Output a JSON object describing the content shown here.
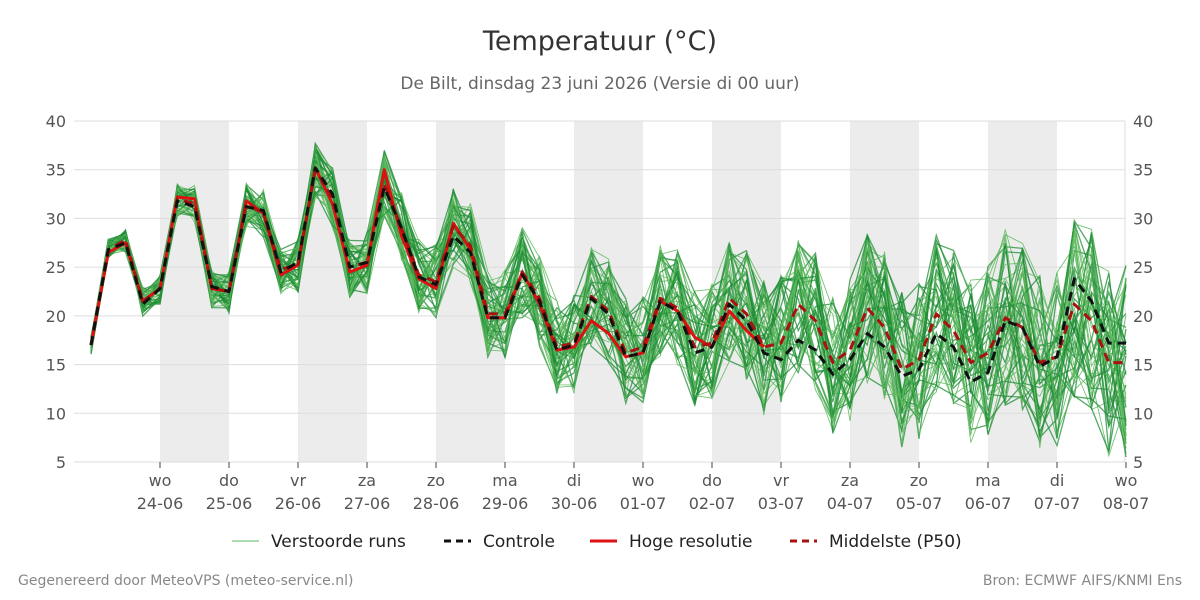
{
  "chart_data": {
    "type": "line",
    "title": "Temperatuur (°C)",
    "subtitle": "De Bilt, dinsdag 23 juni 2026 (Versie di 00 uur)",
    "ylim": [
      5,
      40
    ],
    "yticks": [
      5,
      10,
      15,
      20,
      25,
      30,
      35,
      40
    ],
    "grid": true,
    "legend_position": "bottom",
    "shaded_days": [
      "24-06",
      "26-06",
      "28-06",
      "30-06",
      "02-07",
      "04-07",
      "06-07"
    ],
    "x_ticks": [
      {
        "day": "wo",
        "date": "24-06"
      },
      {
        "day": "do",
        "date": "25-06"
      },
      {
        "day": "vr",
        "date": "26-06"
      },
      {
        "day": "za",
        "date": "27-06"
      },
      {
        "day": "zo",
        "date": "28-06"
      },
      {
        "day": "ma",
        "date": "29-06"
      },
      {
        "day": "di",
        "date": "30-06"
      },
      {
        "day": "wo",
        "date": "01-07"
      },
      {
        "day": "do",
        "date": "02-07"
      },
      {
        "day": "vr",
        "date": "03-07"
      },
      {
        "day": "za",
        "date": "04-07"
      },
      {
        "day": "zo",
        "date": "05-07"
      },
      {
        "day": "ma",
        "date": "06-07"
      },
      {
        "day": "di",
        "date": "07-07"
      },
      {
        "day": "wo",
        "date": "08-07"
      }
    ],
    "x_times": [
      "23-06 00:00",
      "23-06 06:00",
      "23-06 12:00",
      "23-06 18:00",
      "24-06 00:00",
      "24-06 06:00",
      "24-06 12:00",
      "24-06 18:00",
      "25-06 00:00",
      "25-06 06:00",
      "25-06 12:00",
      "25-06 18:00",
      "26-06 00:00",
      "26-06 06:00",
      "26-06 12:00",
      "26-06 18:00",
      "27-06 00:00",
      "27-06 06:00",
      "27-06 12:00",
      "27-06 18:00",
      "28-06 00:00",
      "28-06 06:00",
      "28-06 12:00",
      "28-06 18:00",
      "29-06 00:00",
      "29-06 06:00",
      "29-06 12:00",
      "29-06 18:00",
      "30-06 00:00",
      "30-06 06:00",
      "30-06 12:00",
      "30-06 18:00",
      "01-07 00:00",
      "01-07 06:00",
      "01-07 12:00",
      "01-07 18:00",
      "02-07 00:00",
      "02-07 06:00",
      "02-07 12:00",
      "02-07 18:00",
      "03-07 00:00",
      "03-07 06:00",
      "03-07 12:00",
      "03-07 18:00",
      "04-07 00:00",
      "04-07 06:00",
      "04-07 12:00",
      "04-07 18:00",
      "05-07 00:00",
      "05-07 06:00",
      "05-07 12:00",
      "05-07 18:00",
      "06-07 00:00",
      "06-07 06:00",
      "06-07 12:00",
      "06-07 18:00",
      "07-07 00:00",
      "07-07 06:00",
      "07-07 12:00",
      "07-07 18:00",
      "08-07 00:00"
    ],
    "series": [
      {
        "name": "Controle",
        "color": "#111111",
        "style": "dashed",
        "values": [
          17,
          26.8,
          27.5,
          21.2,
          22.8,
          31.8,
          31.2,
          23,
          22.5,
          31.2,
          30.8,
          24.5,
          25.5,
          35.2,
          32.5,
          25,
          25.5,
          33.2,
          29,
          24,
          23.2,
          28.2,
          26.5,
          19.8,
          19.8,
          24.2,
          21.5,
          16.5,
          17,
          21.8,
          20.2,
          15.8,
          16.2,
          21.5,
          20.5,
          16.2,
          16.8,
          21.2,
          19.5,
          16.2,
          15.5,
          17.5,
          16.5,
          14,
          15.5,
          18.2,
          16.8,
          13.8,
          14.5,
          18.2,
          16.8,
          13.2,
          14.2,
          19.5,
          18.8,
          14.8,
          15.8,
          23.8,
          21.5,
          17.2,
          17.2
        ]
      },
      {
        "name": "Hoge resolutie",
        "color": "#dd1111",
        "style": "solid",
        "values": [
          17,
          26.5,
          27.5,
          21.5,
          22.8,
          32.2,
          32,
          22.8,
          22.5,
          31.8,
          30.5,
          24.2,
          25.2,
          35.2,
          31.5,
          24.5,
          25.2,
          35,
          28.2,
          23.8,
          22.8,
          29.5,
          26.8,
          19.8,
          19.8,
          24.5,
          21.2,
          16.5,
          16.8,
          19.5,
          18.2,
          15.8,
          16.2,
          21.5,
          20.5,
          17.8,
          16.8,
          20.5,
          18.5,
          16.8
        ]
      },
      {
        "name": "Middelste (P50)",
        "color": "#aa1111",
        "style": "dashed",
        "values": [
          17,
          26.8,
          27.8,
          21.5,
          22.8,
          32,
          31.5,
          22.8,
          22.5,
          31.5,
          30.5,
          24.8,
          25.2,
          35,
          32,
          25,
          25.5,
          33.5,
          29,
          24.2,
          23.5,
          29.2,
          27.2,
          20.2,
          20.2,
          24.5,
          21.8,
          16.8,
          17.2,
          22,
          20.5,
          16.2,
          16.8,
          21.8,
          20.8,
          16.8,
          17.2,
          21.8,
          20.2,
          16.8,
          17.2,
          21.2,
          19.5,
          15.2,
          16.5,
          20.8,
          18.8,
          14.5,
          15.5,
          20.2,
          18.5,
          15.2,
          16.2,
          19.8,
          18.8,
          15.2,
          15.8,
          21.2,
          19.5,
          15.2,
          15.2
        ]
      }
    ]
  },
  "legend": [
    {
      "label": "Verstoorde runs",
      "color": "#5cb85c",
      "style": "thin"
    },
    {
      "label": "Controle",
      "color": "#111111",
      "style": "dashed"
    },
    {
      "label": "Hoge resolutie",
      "color": "#dd1111",
      "style": "solid"
    },
    {
      "label": "Middelste (P50)",
      "color": "#aa1111",
      "style": "dashed"
    }
  ],
  "footer": {
    "left": "Gegenereerd door MeteoVPS (meteo-service.nl)",
    "right": "Bron: ECMWF AIFS/KNMI Ens"
  },
  "colors": {
    "ensemble_light": "#5cb85c",
    "ensemble_dark": "#1e8c34",
    "shade": "#ececec",
    "grid": "#dddddd"
  }
}
